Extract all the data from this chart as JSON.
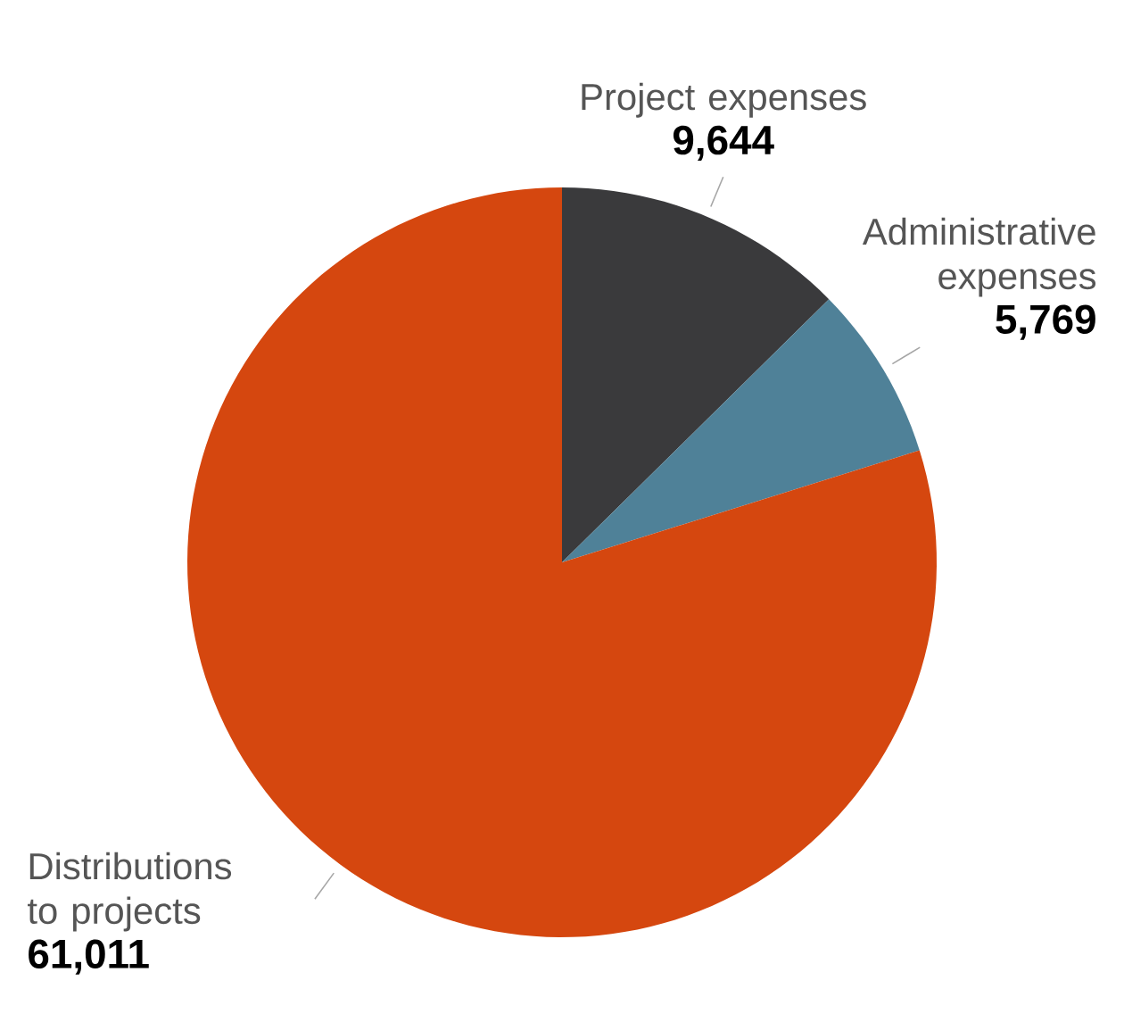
{
  "chart_data": {
    "type": "pie",
    "categories": [
      "Project expenses",
      "Administrative expenses",
      "Distributions to projects"
    ],
    "values": [
      9644,
      5769,
      61011
    ],
    "value_labels": [
      "9,644",
      "5,769",
      "61,011"
    ],
    "colors": [
      "#3a3a3c",
      "#4f8198",
      "#d5470f"
    ]
  }
}
